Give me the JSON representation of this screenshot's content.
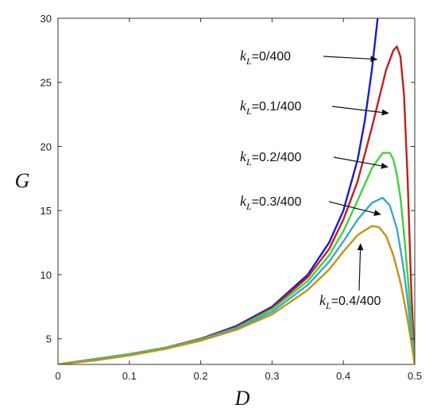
{
  "chart_data": {
    "type": "line",
    "xlabel": "D",
    "ylabel": "G",
    "xlim": [
      0,
      0.5
    ],
    "ylim": [
      3,
      30
    ],
    "xticks": [
      "0",
      "0.1",
      "0.2",
      "0.3",
      "0.4",
      "0.5"
    ],
    "xtick_values": [
      0,
      0.1,
      0.2,
      0.3,
      0.4,
      0.5
    ],
    "yticks": [
      "5",
      "10",
      "15",
      "20",
      "25",
      "30"
    ],
    "ytick_values": [
      5,
      10,
      15,
      20,
      25,
      30
    ],
    "grid": false,
    "series": [
      {
        "name": "kL=0/400",
        "color": "#1a1ad6",
        "x": [
          0,
          0.05,
          0.1,
          0.15,
          0.2,
          0.25,
          0.3,
          0.35,
          0.38,
          0.4,
          0.42,
          0.43,
          0.44,
          0.448
        ],
        "y": [
          3.0,
          3.4,
          3.8,
          4.3,
          5.0,
          6.0,
          7.5,
          10.0,
          12.5,
          15.0,
          19.0,
          22.0,
          26.0,
          30.0
        ]
      },
      {
        "name": "kL=0.1/400",
        "color": "#c0201b",
        "x": [
          0,
          0.05,
          0.1,
          0.15,
          0.2,
          0.25,
          0.3,
          0.35,
          0.38,
          0.4,
          0.42,
          0.44,
          0.46,
          0.47,
          0.475,
          0.48,
          0.485,
          0.49,
          0.495,
          0.5
        ],
        "y": [
          3.0,
          3.4,
          3.8,
          4.3,
          5.0,
          5.9,
          7.4,
          9.8,
          12.0,
          14.3,
          17.3,
          21.5,
          26.0,
          27.5,
          27.8,
          27.0,
          24.0,
          17.5,
          9.0,
          3.0
        ]
      },
      {
        "name": "kL=0.2/400",
        "color": "#3fd23a",
        "x": [
          0,
          0.05,
          0.1,
          0.15,
          0.2,
          0.25,
          0.3,
          0.35,
          0.38,
          0.4,
          0.42,
          0.44,
          0.455,
          0.465,
          0.47,
          0.475,
          0.48,
          0.485,
          0.49,
          0.495,
          0.5
        ],
        "y": [
          3.0,
          3.4,
          3.8,
          4.3,
          4.95,
          5.85,
          7.3,
          9.5,
          11.5,
          13.4,
          15.8,
          18.3,
          19.5,
          19.5,
          19.0,
          17.8,
          16.0,
          13.2,
          10.0,
          6.5,
          3.0
        ]
      },
      {
        "name": "kL=0.3/400",
        "color": "#3aa6d2",
        "x": [
          0,
          0.05,
          0.1,
          0.15,
          0.2,
          0.25,
          0.3,
          0.35,
          0.38,
          0.4,
          0.42,
          0.44,
          0.455,
          0.465,
          0.475,
          0.48,
          0.485,
          0.49,
          0.495,
          0.5
        ],
        "y": [
          3.0,
          3.35,
          3.75,
          4.25,
          4.9,
          5.8,
          7.1,
          9.2,
          11.0,
          12.6,
          14.3,
          15.6,
          16.0,
          15.4,
          13.6,
          12.0,
          10.2,
          8.0,
          5.5,
          3.0
        ]
      },
      {
        "name": "kL=0.4/400",
        "color": "#c4920f",
        "x": [
          0,
          0.05,
          0.1,
          0.15,
          0.2,
          0.25,
          0.3,
          0.35,
          0.38,
          0.4,
          0.42,
          0.44,
          0.45,
          0.46,
          0.47,
          0.48,
          0.485,
          0.49,
          0.495,
          0.5
        ],
        "y": [
          3.0,
          3.3,
          3.7,
          4.2,
          4.85,
          5.7,
          6.9,
          8.8,
          10.4,
          11.8,
          13.1,
          13.8,
          13.7,
          13.0,
          11.5,
          9.4,
          8.0,
          6.5,
          4.8,
          3.0
        ]
      }
    ],
    "annotations": [
      {
        "k": "k",
        "sub": "L",
        "text": "=0/400",
        "x": 0.447,
        "y": 26.8
      },
      {
        "k": "k",
        "sub": "L",
        "text": "=0.1/400",
        "x": 0.463,
        "y": 22.6
      },
      {
        "k": "k",
        "sub": "L",
        "text": "=0.2/400",
        "x": 0.462,
        "y": 18.4
      },
      {
        "k": "k",
        "sub": "L",
        "text": "=0.3/400",
        "x": 0.452,
        "y": 14.7
      },
      {
        "k": "k",
        "sub": "L",
        "text": "=0.4/400",
        "x": 0.424,
        "y": 12.4
      }
    ]
  }
}
